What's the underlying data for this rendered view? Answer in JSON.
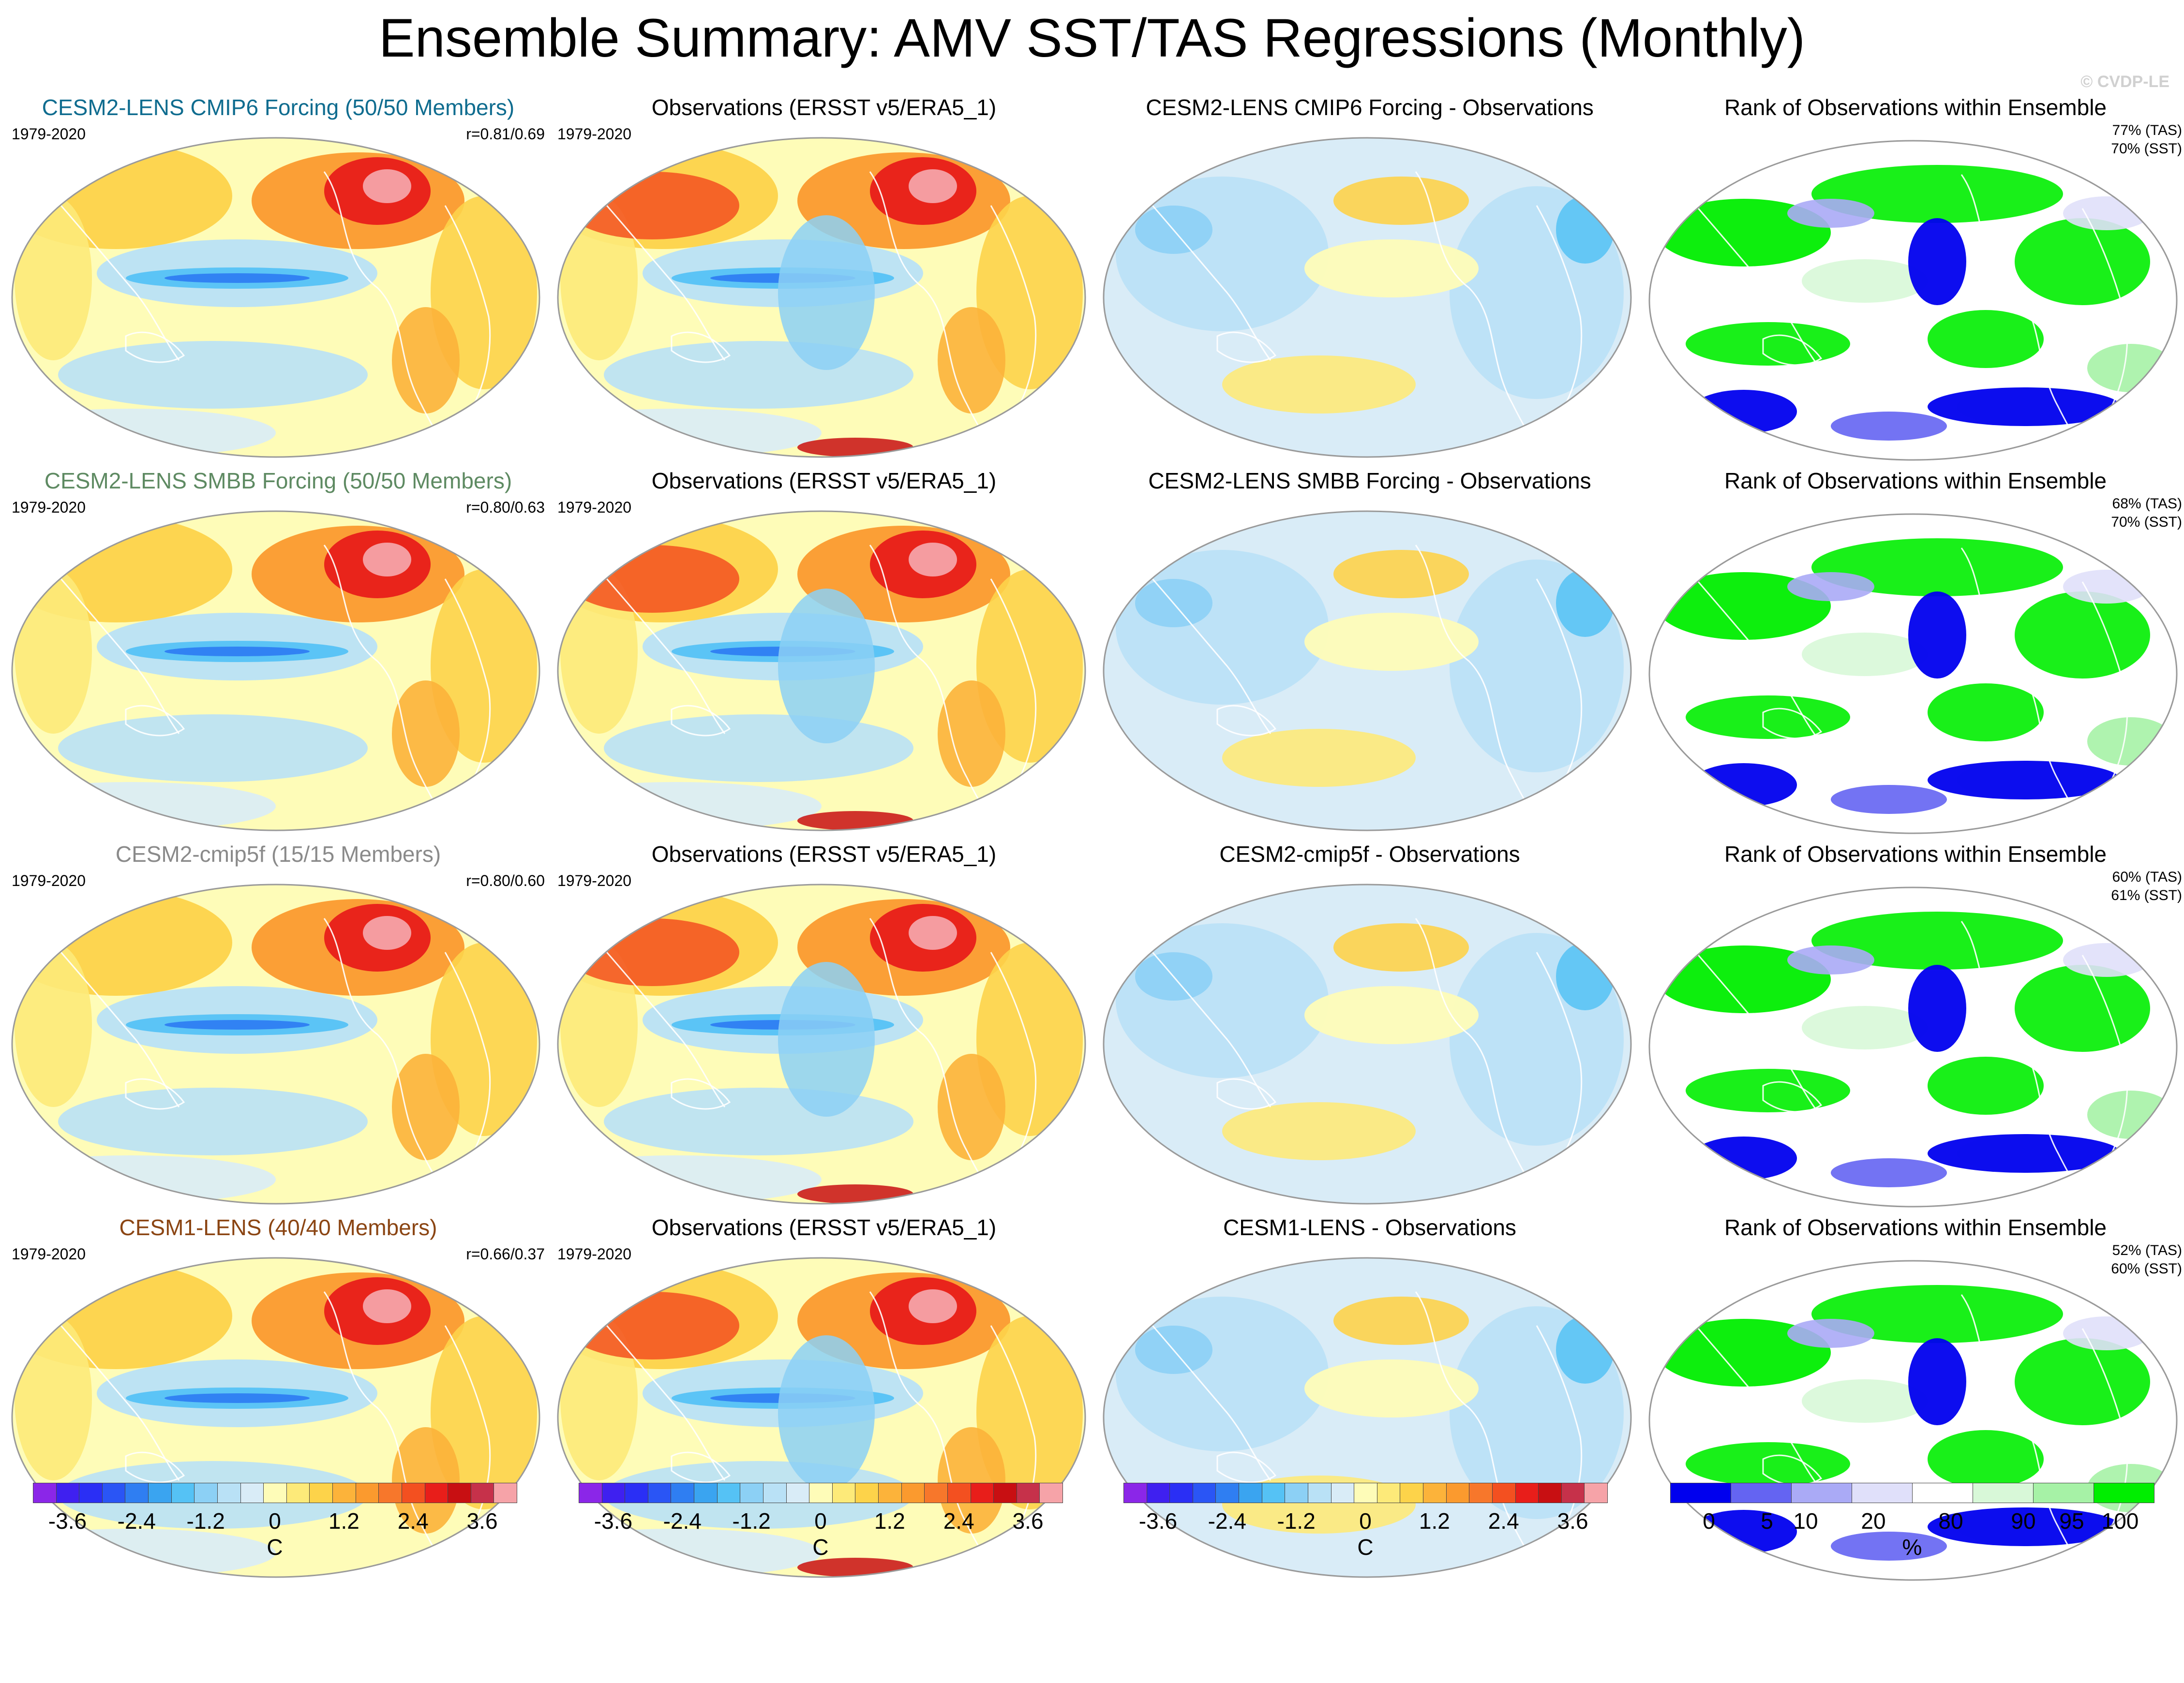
{
  "header": {
    "title": "Ensemble Summary: AMV SST/TAS Regressions (Monthly)",
    "credit": "© CVDP-LE"
  },
  "colors": {
    "div_palette": [
      "#8b26e8",
      "#3f20f0",
      "#2a2ff5",
      "#2a55f5",
      "#2f7ef2",
      "#3aa4f0",
      "#55c2f5",
      "#8cd0f5",
      "#b9e1f6",
      "#d9ecf7",
      "#fefcb8",
      "#fdea79",
      "#fdd34a",
      "#fcb33a",
      "#fb9a2e",
      "#f7772b",
      "#f35020",
      "#e81e1a",
      "#c80f12",
      "#c6314a",
      "#f6a3a8"
    ],
    "rank_palette": [
      "#0000ee",
      "#6464f2",
      "#aaaaf6",
      "#e0e0fa",
      "#ffffff",
      "#d8f8d8",
      "#a6f2a6",
      "#00ee00"
    ],
    "ocean_cool": "#b9e1f6",
    "ocean_warm": "#fefcb8",
    "coast": "#ffffff"
  },
  "rows": [
    {
      "model": {
        "title": "CESM2-LENS CMIP6 Forcing (50/50 Members)",
        "color": "#0f6c8f",
        "period": "1979-2020",
        "corr": "r=0.81/0.69"
      },
      "obs": {
        "title": "Observations (ERSST v5/ERA5_1)",
        "period": "1979-2020"
      },
      "diff": {
        "title": "CESM2-LENS CMIP6 Forcing - Observations"
      },
      "rank": {
        "title": "Rank of Observations within Ensemble",
        "tas": "77% (TAS)",
        "sst": "70% (SST)"
      }
    },
    {
      "model": {
        "title": "CESM2-LENS SMBB Forcing (50/50 Members)",
        "color": "#5e8a62",
        "period": "1979-2020",
        "corr": "r=0.80/0.63"
      },
      "obs": {
        "title": "Observations (ERSST v5/ERA5_1)",
        "period": "1979-2020"
      },
      "diff": {
        "title": "CESM2-LENS SMBB Forcing - Observations"
      },
      "rank": {
        "title": "Rank of Observations within Ensemble",
        "tas": "68% (TAS)",
        "sst": "70% (SST)"
      }
    },
    {
      "model": {
        "title": "CESM2-cmip5f (15/15 Members)",
        "color": "#8a8a8a",
        "period": "1979-2020",
        "corr": "r=0.80/0.60"
      },
      "obs": {
        "title": "Observations (ERSST v5/ERA5_1)",
        "period": "1979-2020"
      },
      "diff": {
        "title": "CESM2-cmip5f - Observations"
      },
      "rank": {
        "title": "Rank of Observations within Ensemble",
        "tas": "60% (TAS)",
        "sst": "61% (SST)"
      }
    },
    {
      "model": {
        "title": "CESM1-LENS (40/40 Members)",
        "color": "#8b4513",
        "period": "1979-2020",
        "corr": "r=0.66/0.37"
      },
      "obs": {
        "title": "Observations (ERSST v5/ERA5_1)",
        "period": "1979-2020"
      },
      "diff": {
        "title": "CESM1-LENS - Observations"
      },
      "rank": {
        "title": "Rank of Observations within Ensemble",
        "tas": "52% (TAS)",
        "sst": "60% (SST)"
      }
    }
  ],
  "colorbars": {
    "regression": {
      "ticks": [
        "-3.6",
        "-2.4",
        "-1.2",
        "0",
        "1.2",
        "2.4",
        "3.6"
      ],
      "tick_values": [
        -3.6,
        -2.4,
        -1.2,
        0,
        1.2,
        2.4,
        3.6
      ],
      "min": -4.2,
      "max": 4.2,
      "unit": "C"
    },
    "rank": {
      "ticks": [
        "0",
        "5",
        "10",
        "20",
        "80",
        "90",
        "95",
        "100"
      ],
      "unit": "%"
    }
  }
}
